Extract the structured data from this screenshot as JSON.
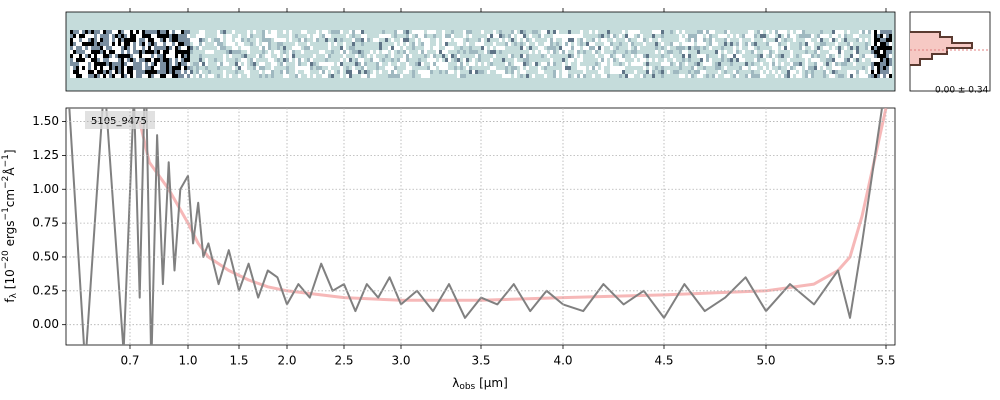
{
  "chart_data": {
    "type": "line",
    "label": "5105_9475",
    "panel_note": "0.00 ± 0.34",
    "x_label": [
      "λ",
      "obs",
      " [μm]"
    ],
    "y_label": [
      "f",
      "λ",
      " [10",
      "−20",
      " ergs",
      "−1",
      "cm",
      "−2",
      "Å",
      "−1",
      "]"
    ],
    "xlim": [
      0.6,
      5.52
    ],
    "xticks": [
      0.7,
      {
        "value": 1,
        "label": "1.0"
      },
      1.5,
      {
        "value": 2,
        "label": "2.0"
      },
      2.5,
      {
        "value": 3,
        "label": "3.0"
      },
      3.5,
      {
        "value": 4,
        "label": "4.0"
      },
      4.5,
      {
        "value": 5,
        "label": "5.0"
      },
      5.5
    ],
    "ylim": [
      -0.15,
      1.6
    ],
    "yticks": [
      {
        "value": 0,
        "label": "0.00"
      },
      {
        "value": 0.25,
        "label": "0.25"
      },
      {
        "value": 0.5,
        "label": "0.50"
      },
      {
        "value": 0.75,
        "label": "0.75"
      },
      {
        "value": 1,
        "label": "1.00"
      },
      {
        "value": 1.25,
        "label": "1.25"
      },
      {
        "value": 1.5,
        "label": "1.50"
      }
    ],
    "grid": true,
    "series": [
      {
        "color": "#f4a6a6",
        "x": [
          0.75,
          0.8,
          0.9,
          1.0,
          1.1,
          1.2,
          1.4,
          1.6,
          1.8,
          2.0,
          2.5,
          3.0,
          3.5,
          4.0,
          4.5,
          5.0,
          5.2,
          5.3,
          5.35,
          5.4,
          5.45,
          5.5
        ],
        "values": [
          1.5,
          1.2,
          1.0,
          0.75,
          0.6,
          0.5,
          0.4,
          0.33,
          0.28,
          0.25,
          0.2,
          0.18,
          0.18,
          0.2,
          0.22,
          0.25,
          0.3,
          0.4,
          0.5,
          0.8,
          1.2,
          1.6
        ]
      },
      {
        "color": "#808080",
        "x": [
          0.6,
          0.63,
          0.66,
          0.69,
          0.72,
          0.75,
          0.78,
          0.81,
          0.84,
          0.87,
          0.9,
          0.93,
          0.96,
          1.0,
          1.05,
          1.1,
          1.15,
          1.2,
          1.3,
          1.4,
          1.5,
          1.6,
          1.7,
          1.8,
          1.9,
          2.0,
          2.1,
          2.2,
          2.3,
          2.4,
          2.5,
          2.6,
          2.7,
          2.8,
          2.9,
          3.0,
          3.1,
          3.2,
          3.3,
          3.4,
          3.5,
          3.6,
          3.7,
          3.8,
          3.9,
          4.0,
          4.1,
          4.2,
          4.3,
          4.4,
          4.5,
          4.6,
          4.7,
          4.8,
          4.9,
          5.0,
          5.1,
          5.2,
          5.3,
          5.35,
          5.4,
          5.45,
          5.5
        ],
        "values": [
          2.0,
          -0.3,
          1.8,
          -0.2,
          1.7,
          0.2,
          2.0,
          -0.3,
          1.4,
          0.3,
          1.2,
          0.4,
          1.0,
          1.1,
          0.6,
          0.9,
          0.5,
          0.6,
          0.3,
          0.55,
          0.25,
          0.45,
          0.2,
          0.4,
          0.35,
          0.15,
          0.3,
          0.2,
          0.45,
          0.25,
          0.3,
          0.1,
          0.3,
          0.2,
          0.35,
          0.15,
          0.25,
          0.1,
          0.3,
          0.05,
          0.2,
          0.15,
          0.3,
          0.1,
          0.25,
          0.15,
          0.1,
          0.3,
          0.15,
          0.25,
          0.05,
          0.3,
          0.1,
          0.2,
          0.35,
          0.1,
          0.3,
          0.15,
          0.4,
          0.05,
          0.6,
          1.2,
          1.8
        ]
      }
    ]
  }
}
